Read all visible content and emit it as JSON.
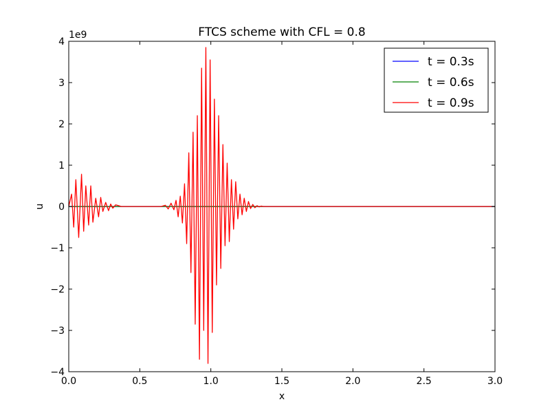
{
  "chart_data": {
    "type": "line",
    "title": "FTCS scheme with CFL = 0.8",
    "xlabel": "x",
    "ylabel": "u",
    "y_multiplier_label": "1e9",
    "xlim": [
      0.0,
      3.0
    ],
    "ylim": [
      -4,
      4
    ],
    "xticks": [
      0.0,
      0.5,
      1.0,
      1.5,
      2.0,
      2.5,
      3.0
    ],
    "xtick_labels": [
      "0.0",
      "0.5",
      "1.0",
      "1.5",
      "2.0",
      "2.5",
      "3.0"
    ],
    "yticks": [
      -4,
      -3,
      -2,
      -1,
      0,
      1,
      2,
      3,
      4
    ],
    "ytick_labels": [
      "−4",
      "−3",
      "−2",
      "−1",
      "0",
      "1",
      "2",
      "3",
      "4"
    ],
    "grid": false,
    "legend_position": "top-right",
    "series": [
      {
        "name": "t = 0.3s",
        "color": "#0000ff",
        "x": [
          0.0,
          3.0
        ],
        "y": [
          0,
          0
        ]
      },
      {
        "name": "t = 0.6s",
        "color": "#008000",
        "x": [
          0.0,
          3.0
        ],
        "y": [
          0,
          0
        ]
      },
      {
        "name": "t = 0.9s",
        "color": "#ff0000",
        "x": [
          0.0,
          0.02,
          0.035,
          0.05,
          0.07,
          0.09,
          0.105,
          0.12,
          0.14,
          0.155,
          0.17,
          0.19,
          0.21,
          0.225,
          0.24,
          0.26,
          0.28,
          0.295,
          0.31,
          0.33,
          0.35,
          0.37,
          0.4,
          0.45,
          0.5,
          0.55,
          0.6,
          0.65,
          0.68,
          0.7,
          0.72,
          0.74,
          0.755,
          0.77,
          0.785,
          0.8,
          0.815,
          0.83,
          0.845,
          0.86,
          0.875,
          0.89,
          0.905,
          0.92,
          0.935,
          0.95,
          0.965,
          0.98,
          0.995,
          1.01,
          1.025,
          1.04,
          1.055,
          1.07,
          1.085,
          1.1,
          1.115,
          1.13,
          1.145,
          1.16,
          1.175,
          1.19,
          1.205,
          1.22,
          1.235,
          1.25,
          1.265,
          1.28,
          1.295,
          1.31,
          1.325,
          1.34,
          1.355,
          1.37,
          1.385,
          1.4,
          1.45,
          1.5,
          1.6,
          2.0,
          2.5,
          3.0
        ],
        "y": [
          0,
          0.3,
          -0.5,
          0.65,
          -0.75,
          0.78,
          -0.6,
          0.5,
          -0.45,
          0.5,
          -0.38,
          0.2,
          -0.25,
          0.22,
          -0.12,
          0.1,
          -0.1,
          0.06,
          -0.04,
          0.04,
          0.02,
          0.0,
          0.0,
          0.0,
          0.0,
          0.0,
          0.0,
          0.0,
          0.03,
          -0.06,
          0.08,
          -0.08,
          0.15,
          -0.25,
          0.25,
          -0.4,
          0.55,
          -0.9,
          1.3,
          -1.6,
          1.8,
          -2.85,
          2.2,
          -3.7,
          3.35,
          -3.0,
          3.85,
          -3.8,
          3.55,
          -3.05,
          2.6,
          -1.9,
          2.2,
          -1.5,
          1.5,
          -0.95,
          1.05,
          -0.85,
          0.65,
          -0.55,
          0.6,
          -0.3,
          0.3,
          -0.2,
          0.2,
          -0.12,
          0.12,
          -0.05,
          0.05,
          -0.03,
          0.02,
          -0.01,
          0.01,
          0.0,
          0.0,
          0.0,
          0.0,
          0.0,
          0.0,
          0.0,
          0.0,
          0.0
        ]
      }
    ]
  }
}
